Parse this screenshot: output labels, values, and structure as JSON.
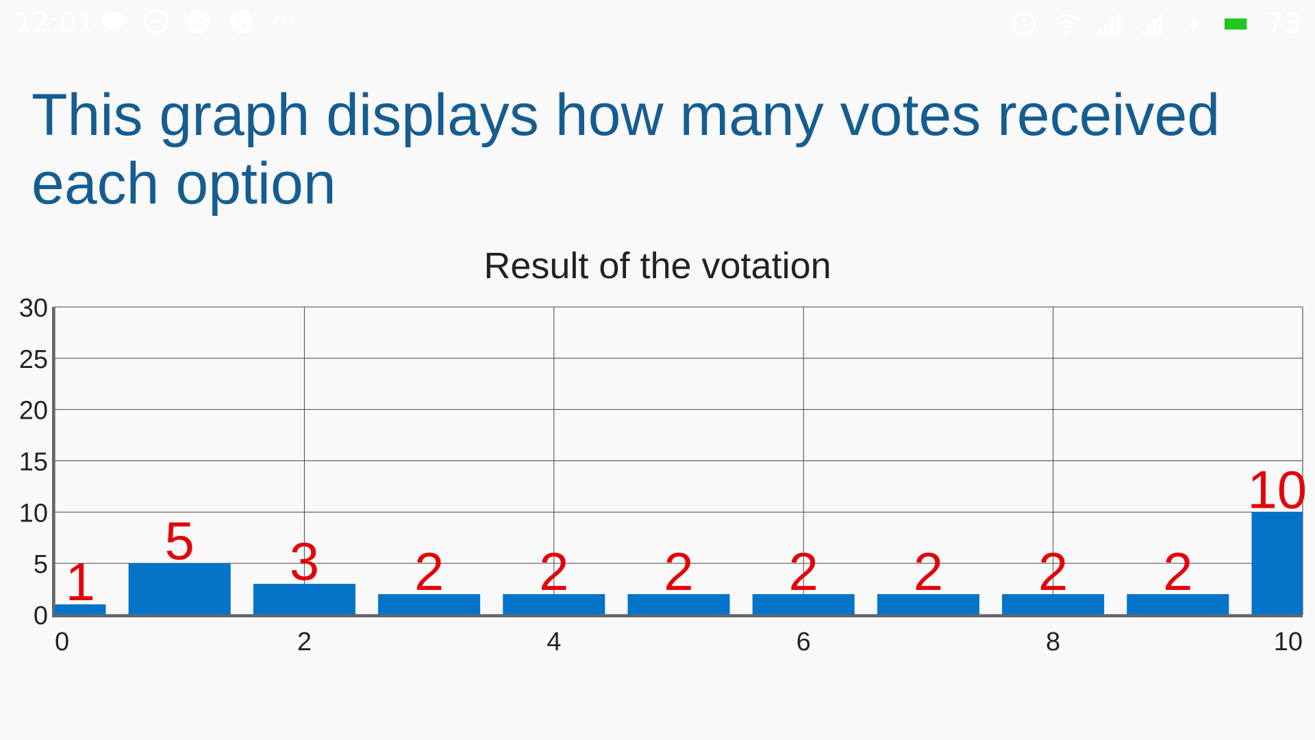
{
  "status_bar": {
    "time": "12:01",
    "battery_percent": "73",
    "left_icons": [
      "chat-bubble-icon",
      "messenger-icon",
      "message-icon",
      "phone-icon",
      "more-icon"
    ],
    "right_icons": [
      "alarm-icon",
      "wifi-icon",
      "signal-icon",
      "signal-icon",
      "charging-icon",
      "battery-icon"
    ],
    "battery_color": "#22c722"
  },
  "headline": "This graph displays how many votes received each option",
  "chart_data": {
    "type": "bar",
    "title": "Result of the votation",
    "xlabel": "",
    "ylabel": "",
    "categories": [
      0,
      1,
      2,
      3,
      4,
      5,
      6,
      7,
      8,
      9,
      10
    ],
    "values": [
      1,
      5,
      3,
      2,
      2,
      2,
      2,
      2,
      2,
      2,
      10
    ],
    "x_ticks": [
      "0",
      "2",
      "4",
      "6",
      "8",
      "10"
    ],
    "y_ticks": [
      "0",
      "5",
      "10",
      "15",
      "20",
      "25",
      "30"
    ],
    "ylim": [
      0,
      30
    ],
    "xlim": [
      0,
      10
    ],
    "grid": true,
    "bar_color": "#0474c8",
    "value_label_color": "#e3040b"
  }
}
